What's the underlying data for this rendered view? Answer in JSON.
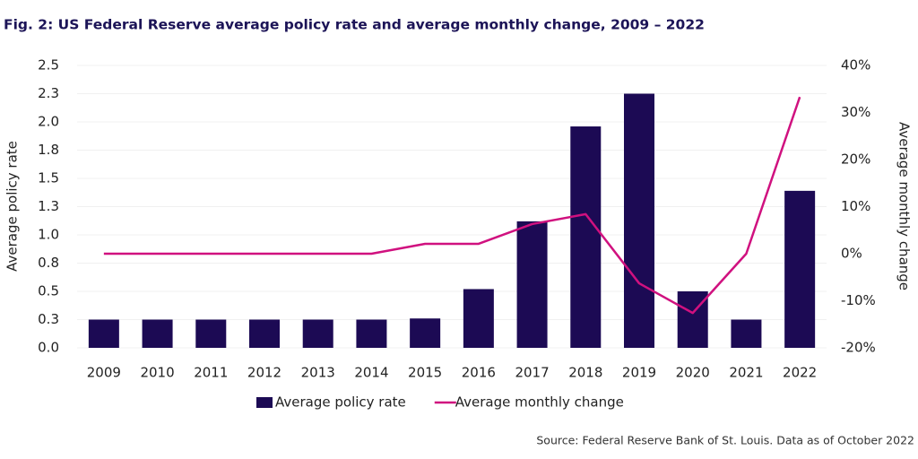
{
  "chart_data": {
    "type": "bar-line",
    "title": "Fig. 2: US Federal Reserve average policy rate and average monthly change, 2009 – 2022",
    "y_label": "Average policy rate",
    "y2_label": "Average monthly change",
    "source": "Source: Federal Reserve Bank of St. Louis. Data as of October 2022",
    "categories": [
      "2009",
      "2010",
      "2011",
      "2012",
      "2013",
      "2014",
      "2015",
      "2016",
      "2017",
      "2018",
      "2019",
      "2020",
      "2021",
      "2022"
    ],
    "series": [
      {
        "name": "Average policy rate",
        "type": "bar",
        "color": "#1c0a54",
        "values": [
          0.25,
          0.25,
          0.25,
          0.25,
          0.25,
          0.25,
          0.26,
          0.52,
          1.12,
          1.96,
          2.25,
          0.5,
          0.25,
          1.39
        ]
      },
      {
        "name": "Average monthly change",
        "type": "line",
        "axis": "y2",
        "color": "#d0117f",
        "values": [
          0,
          0,
          0,
          0,
          0,
          0,
          2.1,
          2.1,
          6.3,
          8.4,
          -6.3,
          -12.6,
          0,
          33.3
        ]
      }
    ],
    "ylim": [
      0,
      2.5
    ],
    "yticks": [
      {
        "value": 0,
        "label": "0.0"
      },
      {
        "value": 0.25,
        "label": "0.3"
      },
      0.5,
      {
        "value": 0.75,
        "label": "0.8"
      },
      {
        "value": 1,
        "label": "1.0"
      },
      {
        "value": 1.25,
        "label": "1.3"
      },
      1.5,
      {
        "value": 1.75,
        "label": "1.8"
      },
      {
        "value": 2,
        "label": "2.0"
      },
      {
        "value": 2.25,
        "label": "2.3"
      },
      2.5
    ],
    "y2lim": [
      -20,
      40
    ],
    "y2ticks": [
      {
        "value": -20,
        "label": "-20%"
      },
      {
        "value": -10,
        "label": "-10%"
      },
      {
        "value": 0,
        "label": "0%"
      },
      {
        "value": 10,
        "label": "10%"
      },
      {
        "value": 20,
        "label": "20%"
      },
      {
        "value": 30,
        "label": "30%"
      },
      {
        "value": 40,
        "label": "40%"
      }
    ],
    "grid": true
  }
}
